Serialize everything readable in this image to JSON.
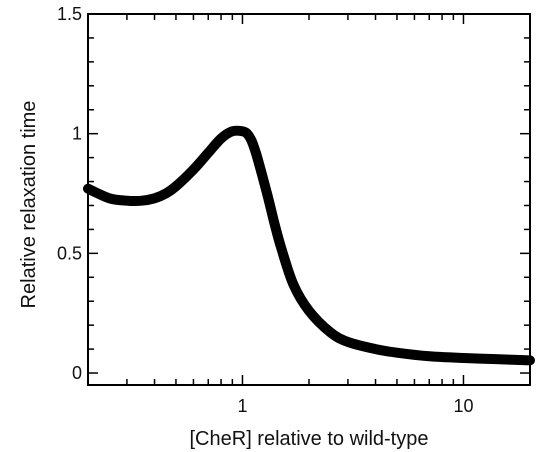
{
  "chart_data": {
    "type": "line",
    "title": "",
    "xlabel": "[CheR] relative to wild-type",
    "ylabel": "Relative relaxation time",
    "xscale": "log",
    "xlim": [
      0.2,
      20
    ],
    "ylim": [
      -0.05,
      1.5
    ],
    "xticks_major": [
      1,
      10
    ],
    "xtick_labels": [
      "1",
      "10"
    ],
    "yticks_major": [
      0,
      0.5,
      1,
      1.5
    ],
    "ytick_labels": [
      "0",
      "0.5",
      "1",
      "1.5"
    ],
    "grid": false,
    "legend": "none",
    "line_color": "#000000",
    "series": [
      {
        "x": [
          0.2,
          0.25,
          0.3,
          0.35,
          0.4,
          0.45,
          0.5,
          0.6,
          0.7,
          0.8,
          0.9,
          1.0,
          1.05,
          1.1,
          1.15,
          1.2,
          1.3,
          1.4,
          1.5,
          1.7,
          2.0,
          2.5,
          3.0,
          4.0,
          5.0,
          7.0,
          10.0,
          14.0,
          20.0
        ],
        "y": [
          0.77,
          0.73,
          0.72,
          0.72,
          0.73,
          0.75,
          0.78,
          0.85,
          0.92,
          0.98,
          1.01,
          1.01,
          1.0,
          0.97,
          0.92,
          0.86,
          0.74,
          0.62,
          0.52,
          0.37,
          0.26,
          0.17,
          0.13,
          0.1,
          0.085,
          0.07,
          0.063,
          0.058,
          0.053
        ]
      }
    ]
  }
}
